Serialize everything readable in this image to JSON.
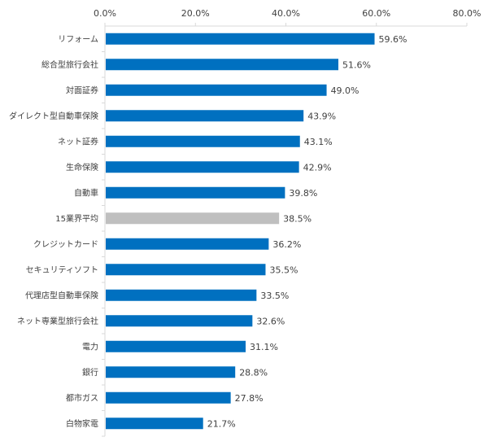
{
  "chart_data": {
    "type": "bar",
    "orientation": "horizontal",
    "title": "",
    "xlabel": "",
    "ylabel": "",
    "xlim": [
      0,
      80
    ],
    "x_ticks": [
      "0.0%",
      "20.0%",
      "40.0%",
      "60.0%",
      "80.0%"
    ],
    "grid": false,
    "legend": "none",
    "bar_color": "#0070C0",
    "highlight_color": "#BFBFBF",
    "categories": [
      "リフォーム",
      "総合型旅行会社",
      "対面証券",
      "ダイレクト型自動車保険",
      "ネット証券",
      "生命保険",
      "自動車",
      "15業界平均",
      "クレジットカード",
      "セキュリティソフト",
      "代理店型自動車保険",
      "ネット専業型旅行会社",
      "電力",
      "銀行",
      "都市ガス",
      "白物家電"
    ],
    "values": [
      59.6,
      51.6,
      49.0,
      43.9,
      43.1,
      42.9,
      39.8,
      38.5,
      36.2,
      35.5,
      33.5,
      32.6,
      31.1,
      28.8,
      27.8,
      21.7
    ],
    "value_labels": [
      "59.6%",
      "51.6%",
      "49.0%",
      "43.9%",
      "43.1%",
      "42.9%",
      "39.8%",
      "38.5%",
      "36.2%",
      "35.5%",
      "33.5%",
      "32.6%",
      "31.1%",
      "28.8%",
      "27.8%",
      "21.7%"
    ],
    "highlight_category": "15業界平均"
  }
}
